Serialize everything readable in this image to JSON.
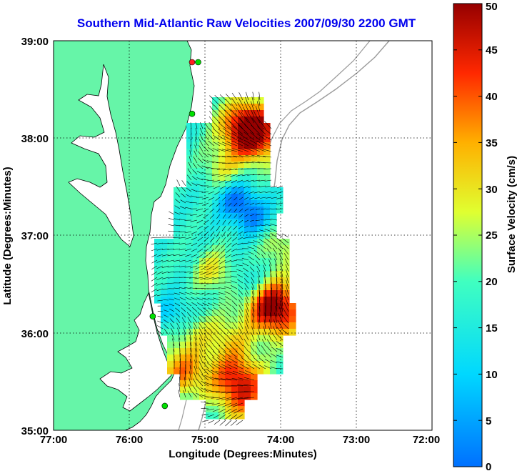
{
  "title": "Southern Mid-Atlantic Raw Velocities 2007/09/30 2200 GMT",
  "map": {
    "xlabel": "Longitude (Degrees:Minutes)",
    "ylabel": "Latitude (Degrees:Minutes)",
    "lon_range": [
      -77,
      -72
    ],
    "lat_range": [
      35,
      39
    ],
    "lon_ticks": [
      "77:00",
      "76:00",
      "75:00",
      "74:00",
      "73:00",
      "72:00"
    ],
    "lat_ticks": [
      "35:00",
      "36:00",
      "37:00",
      "38:00",
      "39:00"
    ],
    "grid": true,
    "colors": {
      "land": "#66f5a8",
      "coast": "#000000",
      "bathymetry": "#9a9a9a",
      "vectors": "#000000",
      "title": "#0000ee"
    },
    "stations": [
      {
        "lon": -75.09,
        "lat": 38.78,
        "color": "#00e000"
      },
      {
        "lon": -75.17,
        "lat": 38.78,
        "color": "#ff2020"
      },
      {
        "lon": -75.17,
        "lat": 38.25,
        "color": "#00e000"
      },
      {
        "lon": -75.69,
        "lat": 36.17,
        "color": "#00e000"
      },
      {
        "lon": -75.53,
        "lat": 35.25,
        "color": "#00e000"
      }
    ]
  },
  "colorbar": {
    "label": "Surface Velocity (cm/s)",
    "range": [
      0,
      50
    ],
    "ticks": [
      "0",
      "5",
      "10",
      "15",
      "20",
      "25",
      "30",
      "35",
      "40",
      "45",
      "50"
    ],
    "colormap": "jet"
  }
}
